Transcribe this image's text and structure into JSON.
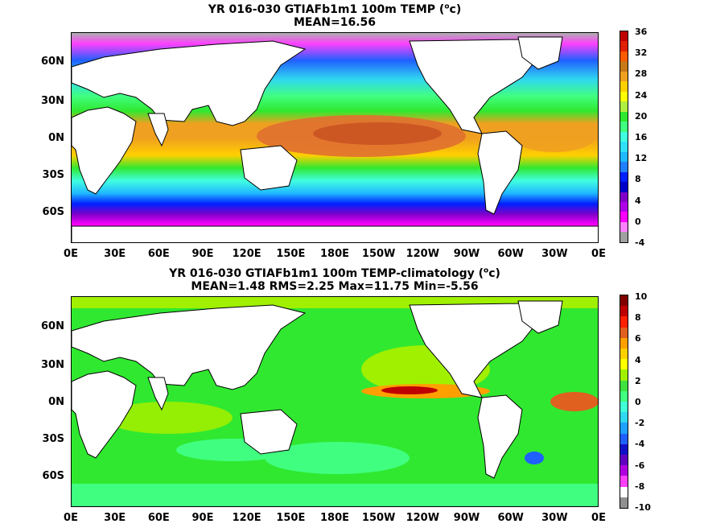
{
  "top": {
    "title_line1_pre": "YR 016-030 GTIAFb1m1 100m TEMP (",
    "title_sup": "o",
    "title_line1_post": "c)",
    "title_line2": "MEAN=16.56",
    "colorbar_ticks": [
      "36",
      "32",
      "28",
      "24",
      "20",
      "16",
      "12",
      "8",
      "4",
      "0",
      "-4"
    ],
    "colorbar_colors": [
      "#bf0000",
      "#e02000",
      "#ff5a00",
      "#c87a18",
      "#f0a020",
      "#ffd000",
      "#ffff00",
      "#b0f040",
      "#30e830",
      "#40ff80",
      "#40ffe0",
      "#30e0f8",
      "#20b8ff",
      "#2080ff",
      "#0020ff",
      "#0000c8",
      "#8000c8",
      "#b000e8",
      "#ff00ff",
      "#ff80ff",
      "#a0a0a0"
    ]
  },
  "bottom": {
    "title_line1_pre": "YR 016-030 GTIAFb1m1 100m TEMP-climatology (",
    "title_sup": "o",
    "title_line1_post": "c)",
    "title_line2": "MEAN=1.48   RMS=2.25   Max=11.75   Min=-5.56",
    "colorbar_ticks": [
      "10",
      "8",
      "6",
      "4",
      "2",
      "0",
      "-2",
      "-4",
      "-6",
      "-8",
      "-10"
    ],
    "colorbar_colors": [
      "#800000",
      "#c00000",
      "#ff2000",
      "#e06020",
      "#ffa000",
      "#ffd000",
      "#ffff00",
      "#a0f000",
      "#40e040",
      "#40ff80",
      "#40ffd8",
      "#30d8f0",
      "#20a0ff",
      "#2060ff",
      "#1010c8",
      "#6000c0",
      "#b000e0",
      "#ff40ff",
      "#ffffff",
      "#909090"
    ]
  },
  "lat_labels": [
    "60N",
    "30N",
    "0N",
    "30S",
    "60S"
  ],
  "lon_labels": [
    "0E",
    "30E",
    "60E",
    "90E",
    "120E",
    "150E",
    "180E",
    "150W",
    "120W",
    "90W",
    "60W",
    "30W",
    "0E"
  ],
  "colors": {
    "land": "#ffffff",
    "coast": "#000000"
  }
}
